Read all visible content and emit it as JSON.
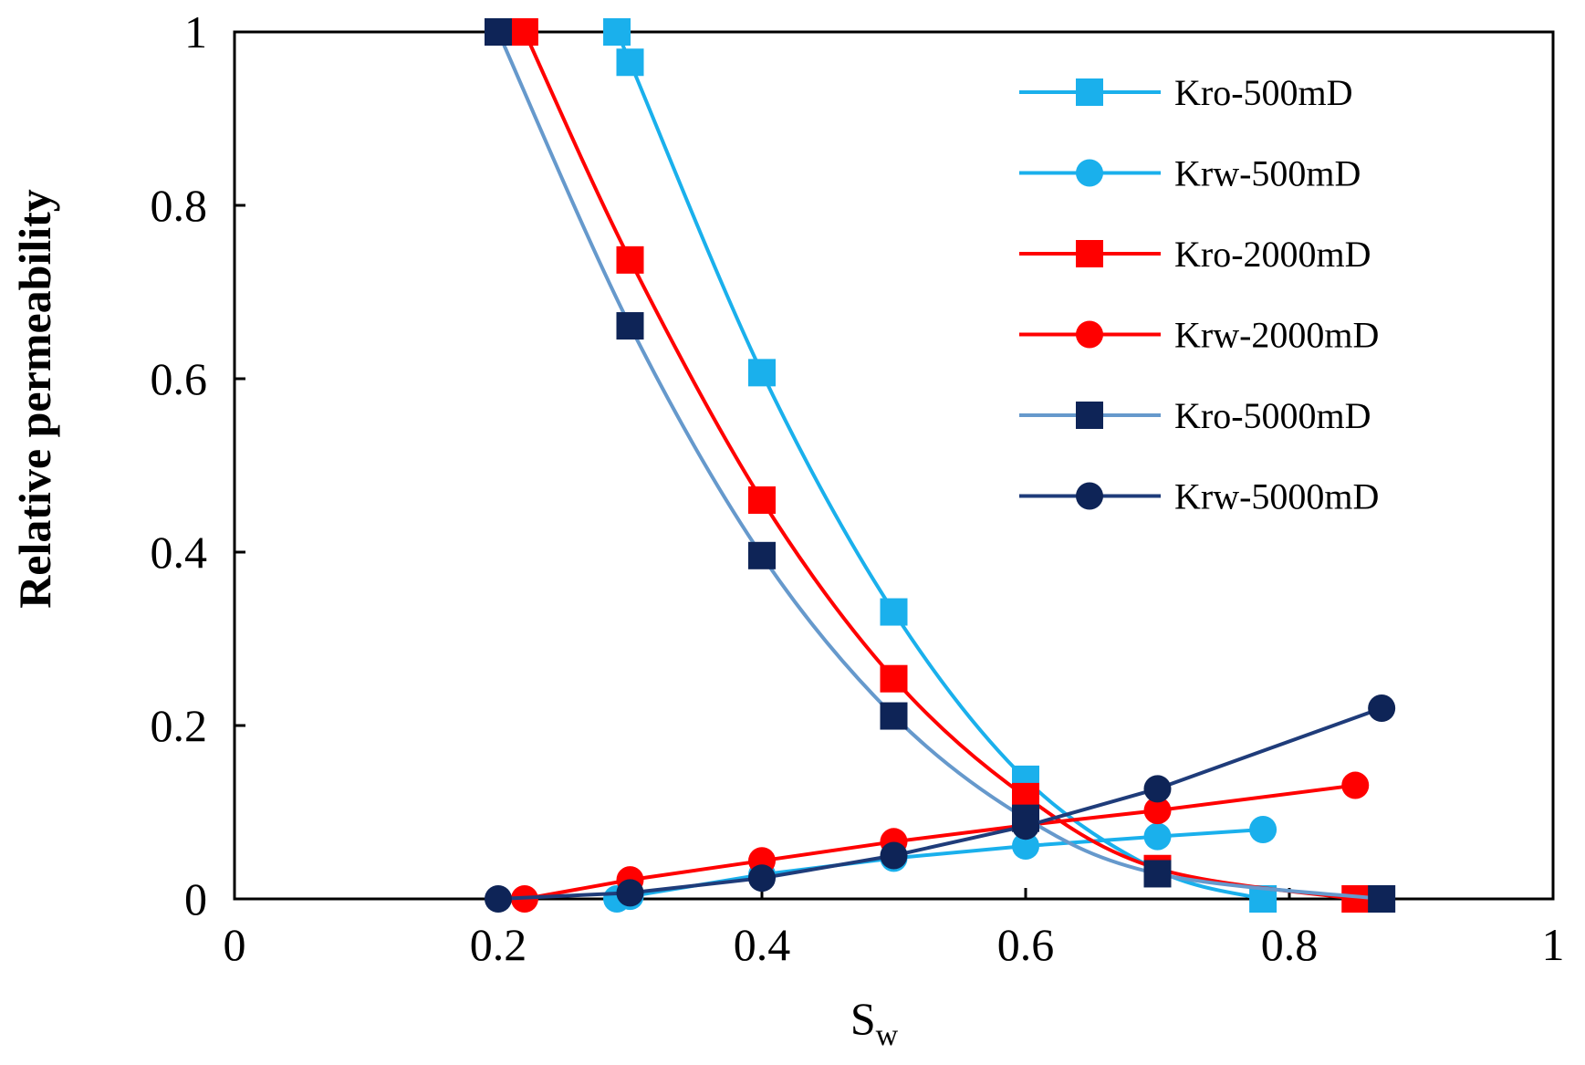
{
  "chart_data": {
    "type": "line",
    "title": "",
    "xlabel": "S",
    "xlabel_subscript": "w",
    "ylabel": "Relative permeability",
    "xlim": [
      0,
      1
    ],
    "ylim": [
      0,
      1
    ],
    "xticks": [
      0,
      0.2,
      0.4,
      0.6,
      0.8,
      1
    ],
    "xtick_labels": [
      "0",
      "0.2",
      "0.4",
      "0.6",
      "0.8",
      "1"
    ],
    "yticks": [
      0,
      0.2,
      0.4,
      0.6,
      0.8,
      1
    ],
    "ytick_labels": [
      "0",
      "0.2",
      "0.4",
      "0.6",
      "0.8",
      "1"
    ],
    "grid": false,
    "legend_position": "top-right",
    "series": [
      {
        "name": "Kro-500mD",
        "color": "#1AB0EC",
        "marker": "square",
        "x": [
          0.29,
          0.3,
          0.4,
          0.5,
          0.6,
          0.7,
          0.78
        ],
        "y": [
          1.0,
          0.965,
          0.607,
          0.331,
          0.138,
          0.033,
          0.0
        ]
      },
      {
        "name": "Krw-500mD",
        "color": "#1AB0EC",
        "marker": "circle",
        "x": [
          0.29,
          0.3,
          0.4,
          0.5,
          0.6,
          0.7,
          0.78
        ],
        "y": [
          0.0,
          0.003,
          0.028,
          0.047,
          0.061,
          0.072,
          0.08
        ]
      },
      {
        "name": "Kro-2000mD",
        "color": "#FF0000",
        "marker": "square",
        "x": [
          0.22,
          0.3,
          0.4,
          0.5,
          0.6,
          0.7,
          0.85
        ],
        "y": [
          1.0,
          0.737,
          0.46,
          0.254,
          0.118,
          0.035,
          0.0
        ]
      },
      {
        "name": "Krw-2000mD",
        "color": "#FF0000",
        "marker": "circle",
        "x": [
          0.22,
          0.3,
          0.4,
          0.5,
          0.6,
          0.7,
          0.85
        ],
        "y": [
          0.0,
          0.022,
          0.044,
          0.066,
          0.085,
          0.102,
          0.131
        ]
      },
      {
        "name": "Kro-5000mD",
        "color": "#6699CC",
        "marker_color": "#0E2457",
        "marker": "square",
        "x": [
          0.2,
          0.3,
          0.4,
          0.5,
          0.6,
          0.7,
          0.87
        ],
        "y": [
          1.0,
          0.661,
          0.396,
          0.211,
          0.093,
          0.029,
          0.0
        ]
      },
      {
        "name": "Krw-5000mD",
        "color": "#1F3C7A",
        "marker_color": "#0E2457",
        "marker": "circle",
        "x": [
          0.2,
          0.3,
          0.4,
          0.5,
          0.6,
          0.7,
          0.87
        ],
        "y": [
          0.0,
          0.007,
          0.024,
          0.05,
          0.084,
          0.127,
          0.22
        ]
      }
    ]
  }
}
